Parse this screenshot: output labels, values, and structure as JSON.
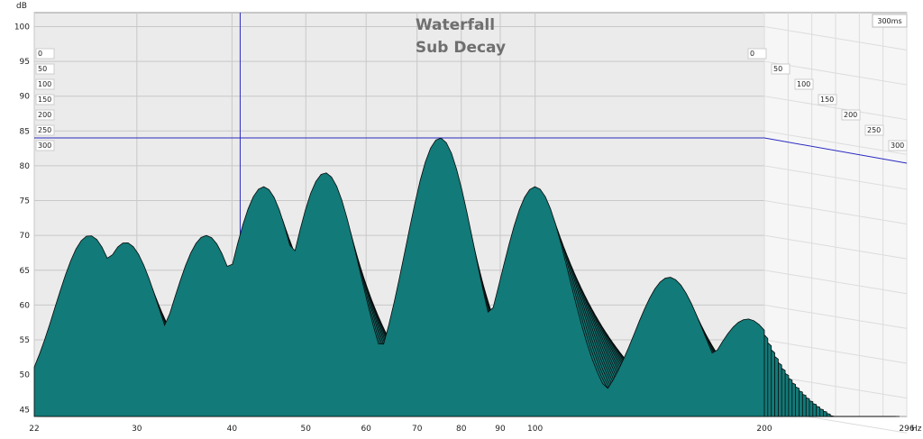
{
  "chart_data": {
    "type": "area",
    "title": "Waterfall",
    "subtitle": "Sub Decay",
    "y_unit": "dB",
    "x_unit": "Hz",
    "xlim": [
      22,
      296
    ],
    "ylim": [
      44,
      102
    ],
    "x_scale": "log",
    "x_ticks": [
      22,
      30,
      40,
      50,
      60,
      70,
      80,
      90,
      100,
      200,
      296
    ],
    "x_tick_labels": [
      "22",
      "30",
      "40",
      "50",
      "60",
      "70",
      "80",
      "90",
      "100",
      "200",
      "296"
    ],
    "y_ticks": [
      45,
      50,
      55,
      60,
      65,
      70,
      75,
      80,
      85,
      90,
      95,
      100
    ],
    "time_unit": "ms",
    "time_slices": [
      0,
      50,
      100,
      150,
      200,
      250,
      300
    ],
    "time_end_label": "300ms",
    "cursor": {
      "freq": 41,
      "level": 84
    },
    "grid": true,
    "colors": {
      "fill": "#127a78",
      "outline": "#0a0a0a",
      "panel": "#ebebeb",
      "cursor": "#2b2bc2"
    },
    "peaks_0ms": [
      {
        "freq": 26,
        "level": 70
      },
      {
        "freq": 29,
        "level": 69
      },
      {
        "freq": 37,
        "level": 70
      },
      {
        "freq": 44,
        "level": 77
      },
      {
        "freq": 53,
        "level": 79
      },
      {
        "freq": 75,
        "level": 84
      },
      {
        "freq": 100,
        "level": 77
      },
      {
        "freq": 150,
        "level": 64
      },
      {
        "freq": 190,
        "level": 58
      }
    ]
  }
}
